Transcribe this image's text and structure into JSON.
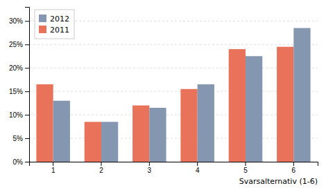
{
  "chart_data": {
    "type": "bar",
    "categories": [
      "1",
      "2",
      "3",
      "4",
      "5",
      "6"
    ],
    "series": [
      {
        "name": "2011",
        "color": "#E8735A",
        "values": [
          16.5,
          8.5,
          12.0,
          15.5,
          24.0,
          24.5
        ]
      },
      {
        "name": "2012",
        "color": "#8496B0",
        "values": [
          13.0,
          8.5,
          11.5,
          16.5,
          22.5,
          28.5
        ]
      }
    ],
    "xlabel": "Svarsalternativ (1-6)",
    "ylim": [
      0,
      33
    ],
    "yticks": [
      {
        "value": 0,
        "label": "0%"
      },
      {
        "value": 5,
        "label": "5%"
      },
      {
        "value": 10,
        "label": "10%"
      },
      {
        "value": 15,
        "label": "15%"
      },
      {
        "value": 20,
        "label": "20%"
      },
      {
        "value": 25,
        "label": "25%"
      },
      {
        "value": 30,
        "label": "30%"
      }
    ],
    "grid": true,
    "legend": "upper left"
  }
}
